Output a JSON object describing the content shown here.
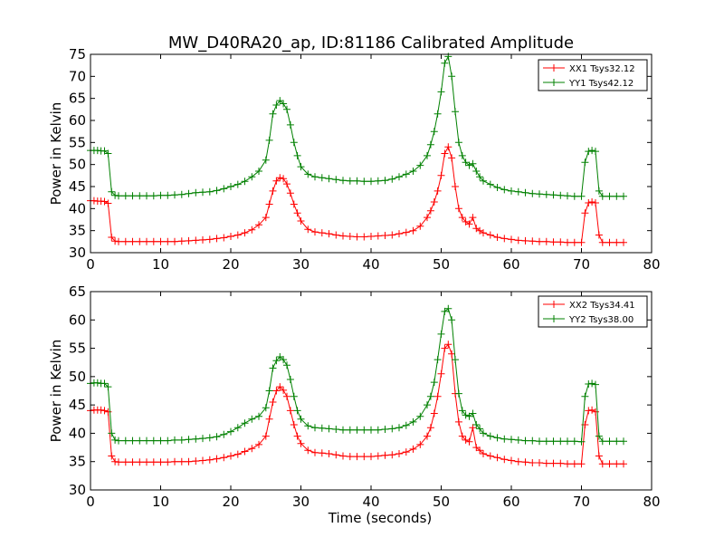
{
  "figure": {
    "title": "MW_D40RA20_ap, ID:81186 Calibrated Amplitude"
  },
  "chart_data": [
    {
      "type": "line",
      "title": "MW_D40RA20_ap, ID:81186 Calibrated Amplitude",
      "xlabel": "",
      "ylabel": "Power in Kelvin",
      "xlim": [
        0,
        80
      ],
      "ylim": [
        30,
        75
      ],
      "xticks": [
        0,
        10,
        20,
        30,
        40,
        50,
        60,
        70,
        80
      ],
      "yticks": [
        30,
        35,
        40,
        45,
        50,
        55,
        60,
        65,
        70,
        75
      ],
      "grid": false,
      "legend_position": "top-right",
      "marker": "+",
      "series": [
        {
          "name": "XX1 Tsys32.12",
          "color": "#ff0000",
          "x": [
            0.0,
            0.5,
            1.0,
            1.5,
            2.0,
            2.5,
            3.0,
            3.5,
            4.0,
            5.0,
            6.0,
            7.0,
            8.0,
            9.0,
            10.0,
            11.0,
            12.0,
            13.0,
            14.0,
            15.0,
            16.0,
            17.0,
            18.0,
            19.0,
            20.0,
            21.0,
            22.0,
            23.0,
            24.0,
            25.0,
            25.5,
            26.0,
            26.5,
            27.0,
            27.5,
            28.0,
            28.5,
            29.0,
            29.5,
            30.0,
            31.0,
            32.0,
            33.0,
            34.0,
            35.0,
            36.0,
            37.0,
            38.0,
            39.0,
            40.0,
            41.0,
            42.0,
            43.0,
            44.0,
            45.0,
            46.0,
            47.0,
            48.0,
            48.5,
            49.0,
            49.5,
            50.0,
            50.5,
            51.0,
            51.5,
            52.0,
            52.5,
            53.0,
            53.5,
            54.0,
            54.5,
            55.0,
            55.5,
            56.0,
            57.0,
            58.0,
            59.0,
            60.0,
            61.0,
            62.0,
            63.0,
            64.0,
            65.0,
            66.0,
            67.0,
            68.0,
            69.0,
            70.0,
            70.5,
            71.0,
            71.5,
            72.0,
            72.5,
            73.0,
            74.0,
            75.0,
            76.0
          ],
          "y": [
            41.8,
            41.8,
            41.7,
            41.7,
            41.6,
            41.2,
            33.5,
            32.6,
            32.5,
            32.5,
            32.5,
            32.5,
            32.5,
            32.5,
            32.5,
            32.5,
            32.5,
            32.6,
            32.7,
            32.8,
            32.9,
            33.0,
            33.2,
            33.4,
            33.7,
            34.0,
            34.5,
            35.2,
            36.3,
            38.0,
            41.0,
            44.0,
            46.3,
            47.0,
            46.8,
            45.6,
            43.5,
            41.0,
            39.0,
            37.2,
            35.3,
            34.7,
            34.5,
            34.3,
            34.0,
            33.8,
            33.7,
            33.6,
            33.6,
            33.7,
            33.8,
            33.9,
            34.0,
            34.3,
            34.6,
            35.0,
            36.0,
            38.0,
            39.5,
            41.5,
            44.0,
            47.5,
            52.5,
            54.0,
            51.5,
            45.0,
            40.0,
            38.0,
            37.0,
            36.5,
            38.0,
            35.5,
            35.0,
            34.5,
            34.0,
            33.5,
            33.2,
            33.0,
            32.8,
            32.7,
            32.6,
            32.5,
            32.5,
            32.4,
            32.4,
            32.3,
            32.3,
            32.3,
            39.0,
            41.3,
            41.5,
            41.3,
            34.0,
            32.3,
            32.3,
            32.3,
            32.3
          ]
        },
        {
          "name": "YY1 Tsys42.12",
          "color": "#008000",
          "x": [
            0.0,
            0.5,
            1.0,
            1.5,
            2.0,
            2.5,
            3.0,
            3.5,
            4.0,
            5.0,
            6.0,
            7.0,
            8.0,
            9.0,
            10.0,
            11.0,
            12.0,
            13.0,
            14.0,
            15.0,
            16.0,
            17.0,
            18.0,
            19.0,
            20.0,
            21.0,
            22.0,
            23.0,
            24.0,
            25.0,
            25.5,
            26.0,
            26.5,
            27.0,
            27.5,
            28.0,
            28.5,
            29.0,
            29.5,
            30.0,
            31.0,
            32.0,
            33.0,
            34.0,
            35.0,
            36.0,
            37.0,
            38.0,
            39.0,
            40.0,
            41.0,
            42.0,
            43.0,
            44.0,
            45.0,
            46.0,
            47.0,
            48.0,
            48.5,
            49.0,
            49.5,
            50.0,
            50.5,
            51.0,
            51.5,
            52.0,
            52.5,
            53.0,
            53.5,
            54.0,
            54.5,
            55.0,
            55.5,
            56.0,
            57.0,
            58.0,
            59.0,
            60.0,
            61.0,
            62.0,
            63.0,
            64.0,
            65.0,
            66.0,
            67.0,
            68.0,
            69.0,
            70.0,
            70.5,
            71.0,
            71.5,
            72.0,
            72.5,
            73.0,
            74.0,
            75.0,
            76.0
          ],
          "y": [
            53.2,
            53.2,
            53.2,
            53.1,
            53.1,
            52.5,
            43.8,
            43.0,
            42.9,
            42.9,
            42.9,
            42.9,
            42.9,
            42.9,
            43.0,
            43.0,
            43.1,
            43.2,
            43.4,
            43.6,
            43.7,
            43.8,
            44.1,
            44.5,
            45.0,
            45.5,
            46.2,
            47.2,
            48.5,
            51.0,
            55.5,
            61.5,
            63.5,
            64.5,
            63.8,
            62.5,
            59.0,
            55.0,
            52.0,
            49.5,
            47.8,
            47.2,
            47.0,
            46.8,
            46.6,
            46.4,
            46.3,
            46.3,
            46.2,
            46.2,
            46.3,
            46.4,
            46.7,
            47.2,
            47.8,
            48.5,
            49.8,
            52.0,
            54.5,
            57.5,
            61.5,
            66.5,
            73.0,
            74.5,
            70.0,
            62.0,
            55.0,
            52.0,
            50.5,
            49.8,
            50.2,
            48.5,
            47.2,
            46.3,
            45.5,
            44.8,
            44.3,
            44.0,
            43.8,
            43.6,
            43.4,
            43.3,
            43.2,
            43.1,
            43.0,
            42.9,
            42.8,
            42.8,
            50.5,
            53.0,
            53.2,
            53.0,
            44.0,
            42.8,
            42.8,
            42.8,
            42.8
          ]
        }
      ]
    },
    {
      "type": "line",
      "title": "",
      "xlabel": "Time (seconds)",
      "ylabel": "Power in Kelvin",
      "xlim": [
        0,
        80
      ],
      "ylim": [
        30,
        65
      ],
      "xticks": [
        0,
        10,
        20,
        30,
        40,
        50,
        60,
        70,
        80
      ],
      "yticks": [
        30,
        35,
        40,
        45,
        50,
        55,
        60,
        65
      ],
      "grid": false,
      "legend_position": "top-right",
      "marker": "+",
      "series": [
        {
          "name": "XX2 Tsys34.41",
          "color": "#ff0000",
          "x": [
            0.0,
            0.5,
            1.0,
            1.5,
            2.0,
            2.5,
            3.0,
            3.5,
            4.0,
            5.0,
            6.0,
            7.0,
            8.0,
            9.0,
            10.0,
            11.0,
            12.0,
            13.0,
            14.0,
            15.0,
            16.0,
            17.0,
            18.0,
            19.0,
            20.0,
            21.0,
            22.0,
            23.0,
            24.0,
            25.0,
            25.5,
            26.0,
            26.5,
            27.0,
            27.5,
            28.0,
            28.5,
            29.0,
            29.5,
            30.0,
            31.0,
            32.0,
            33.0,
            34.0,
            35.0,
            36.0,
            37.0,
            38.0,
            39.0,
            40.0,
            41.0,
            42.0,
            43.0,
            44.0,
            45.0,
            46.0,
            47.0,
            48.0,
            48.5,
            49.0,
            49.5,
            50.0,
            50.5,
            51.0,
            51.5,
            52.0,
            52.5,
            53.0,
            53.5,
            54.0,
            54.5,
            55.0,
            55.5,
            56.0,
            57.0,
            58.0,
            59.0,
            60.0,
            61.0,
            62.0,
            63.0,
            64.0,
            65.0,
            66.0,
            67.0,
            68.0,
            69.0,
            70.0,
            70.5,
            71.0,
            71.5,
            72.0,
            72.5,
            73.0,
            74.0,
            75.0,
            76.0
          ],
          "y": [
            44.0,
            44.1,
            44.1,
            44.1,
            44.0,
            43.8,
            36.0,
            35.0,
            34.9,
            34.9,
            34.9,
            34.9,
            34.9,
            34.9,
            34.9,
            34.9,
            35.0,
            35.0,
            35.0,
            35.1,
            35.2,
            35.3,
            35.5,
            35.7,
            36.0,
            36.3,
            36.8,
            37.3,
            38.0,
            39.5,
            42.5,
            45.5,
            47.5,
            48.2,
            47.6,
            46.5,
            44.0,
            41.5,
            39.5,
            38.2,
            37.0,
            36.6,
            36.5,
            36.4,
            36.2,
            36.0,
            35.9,
            35.9,
            35.9,
            35.9,
            36.0,
            36.1,
            36.2,
            36.4,
            36.7,
            37.2,
            38.0,
            39.5,
            41.0,
            43.5,
            46.5,
            50.5,
            55.0,
            55.7,
            54.0,
            47.0,
            42.0,
            39.5,
            38.8,
            38.5,
            41.0,
            37.5,
            37.0,
            36.4,
            36.0,
            35.7,
            35.4,
            35.2,
            35.0,
            34.9,
            34.8,
            34.8,
            34.7,
            34.7,
            34.7,
            34.6,
            34.6,
            34.6,
            41.5,
            44.0,
            44.1,
            43.8,
            36.0,
            34.6,
            34.6,
            34.6,
            34.6
          ]
        },
        {
          "name": "YY2 Tsys38.00",
          "color": "#008000",
          "x": [
            0.0,
            0.5,
            1.0,
            1.5,
            2.0,
            2.5,
            3.0,
            3.5,
            4.0,
            5.0,
            6.0,
            7.0,
            8.0,
            9.0,
            10.0,
            11.0,
            12.0,
            13.0,
            14.0,
            15.0,
            16.0,
            17.0,
            18.0,
            19.0,
            20.0,
            21.0,
            22.0,
            23.0,
            24.0,
            25.0,
            25.5,
            26.0,
            26.5,
            27.0,
            27.5,
            28.0,
            28.5,
            29.0,
            29.5,
            30.0,
            31.0,
            32.0,
            33.0,
            34.0,
            35.0,
            36.0,
            37.0,
            38.0,
            39.0,
            40.0,
            41.0,
            42.0,
            43.0,
            44.0,
            45.0,
            46.0,
            47.0,
            48.0,
            48.5,
            49.0,
            49.5,
            50.0,
            50.5,
            51.0,
            51.5,
            52.0,
            52.5,
            53.0,
            53.5,
            54.0,
            54.5,
            55.0,
            55.5,
            56.0,
            57.0,
            58.0,
            59.0,
            60.0,
            61.0,
            62.0,
            63.0,
            64.0,
            65.0,
            66.0,
            67.0,
            68.0,
            69.0,
            70.0,
            70.5,
            71.0,
            71.5,
            72.0,
            72.5,
            73.0,
            74.0,
            75.0,
            76.0
          ],
          "y": [
            48.8,
            48.9,
            48.9,
            48.8,
            48.8,
            48.2,
            40.0,
            38.8,
            38.7,
            38.7,
            38.7,
            38.7,
            38.7,
            38.7,
            38.7,
            38.7,
            38.8,
            38.8,
            38.9,
            39.0,
            39.1,
            39.2,
            39.4,
            39.8,
            40.3,
            41.0,
            41.8,
            42.5,
            43.0,
            44.5,
            47.5,
            51.5,
            52.8,
            53.5,
            53.0,
            52.0,
            49.5,
            46.5,
            44.0,
            42.5,
            41.3,
            41.0,
            40.9,
            40.8,
            40.7,
            40.6,
            40.6,
            40.6,
            40.6,
            40.6,
            40.6,
            40.7,
            40.8,
            41.0,
            41.4,
            42.0,
            43.0,
            45.0,
            46.5,
            49.0,
            53.0,
            57.5,
            61.5,
            62.0,
            60.0,
            53.0,
            47.0,
            44.0,
            43.2,
            43.0,
            43.5,
            41.5,
            40.8,
            40.0,
            39.5,
            39.2,
            39.0,
            38.9,
            38.8,
            38.7,
            38.7,
            38.6,
            38.6,
            38.6,
            38.6,
            38.6,
            38.6,
            38.5,
            46.5,
            48.7,
            48.8,
            48.6,
            39.5,
            38.6,
            38.6,
            38.6,
            38.6
          ]
        }
      ]
    }
  ]
}
